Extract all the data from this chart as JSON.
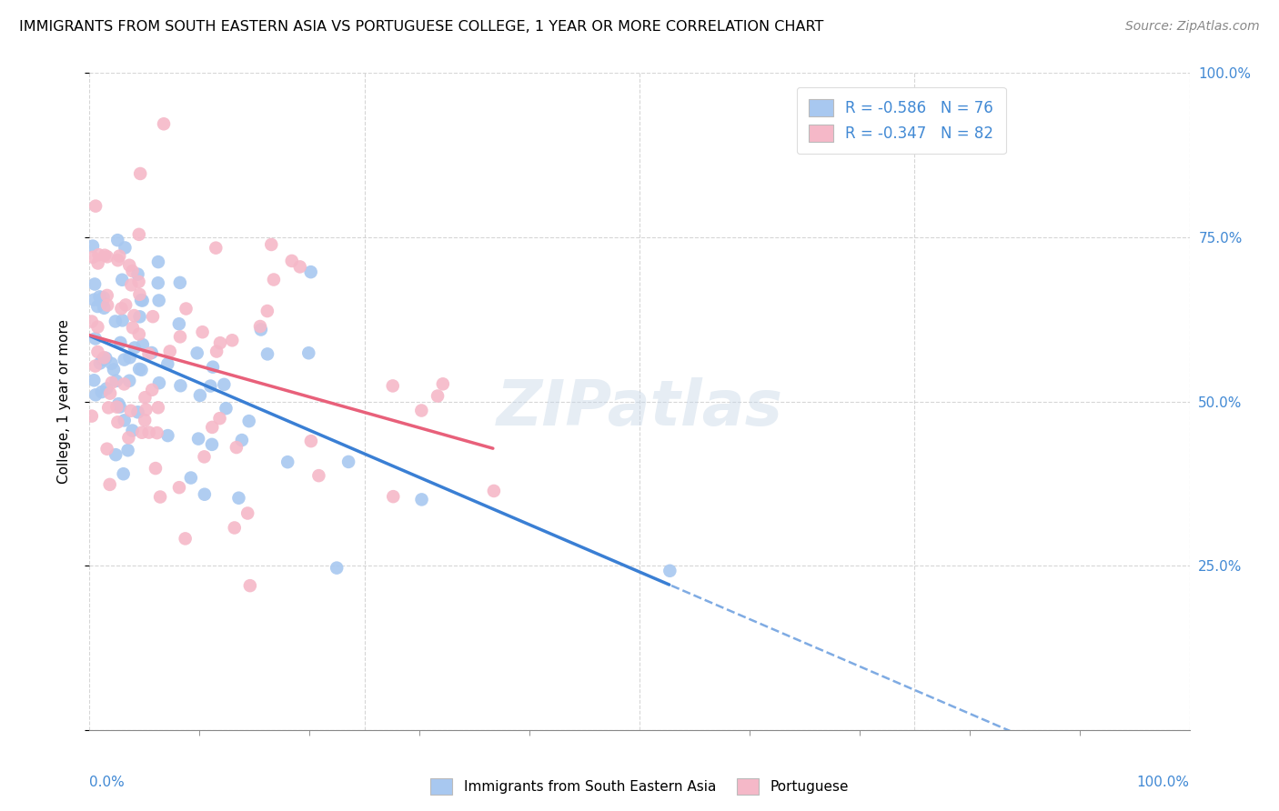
{
  "title": "IMMIGRANTS FROM SOUTH EASTERN ASIA VS PORTUGUESE COLLEGE, 1 YEAR OR MORE CORRELATION CHART",
  "source": "Source: ZipAtlas.com",
  "ylabel": "College, 1 year or more",
  "legend_label1": "Immigrants from South Eastern Asia",
  "legend_label2": "Portuguese",
  "r1": -0.586,
  "n1": 76,
  "r2": -0.347,
  "n2": 82,
  "color1": "#A8C8F0",
  "color2": "#F5B8C8",
  "line_color1": "#3A7FD4",
  "line_color2": "#E8607A",
  "axis_label_color": "#4189D4",
  "watermark": "ZIPatlas",
  "seed1": 77,
  "seed2": 33
}
